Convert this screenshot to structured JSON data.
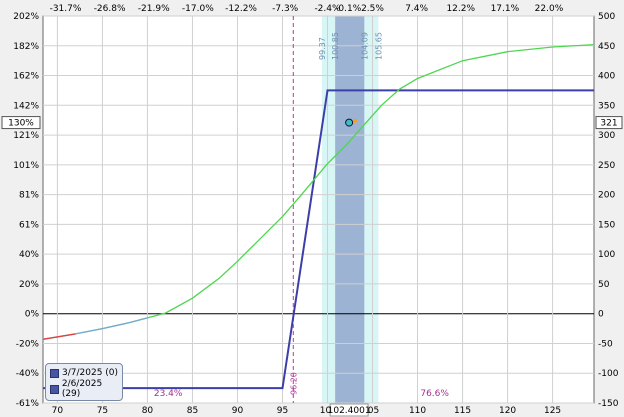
{
  "chart_data": {
    "type": "line",
    "x_ticks": [
      "70",
      "75",
      "80",
      "85",
      "90",
      "95",
      "100",
      "105",
      "110",
      "115",
      "120",
      "125"
    ],
    "x_top_ticks": [
      "-31.7%",
      "-26.8%",
      "-21.9%",
      "-17.0%",
      "-12.2%",
      "-7.3%",
      "-2.4%",
      "-0.1%",
      "2.5%",
      "7.4%",
      "12.2%",
      "17.1%",
      "22.0%"
    ],
    "y_left_ticks": [
      "202%",
      "182%",
      "162%",
      "142%",
      "121%",
      "101%",
      "81%",
      "61%",
      "40%",
      "20%",
      "0%",
      "-20%",
      "-40%",
      "-61%"
    ],
    "y_right_ticks": [
      "500",
      "450",
      "400",
      "350",
      "300",
      "250",
      "200",
      "150",
      "100",
      "50",
      "0",
      "-50",
      "-100",
      "-150"
    ],
    "xlim": [
      68.4,
      129.6
    ],
    "ylim": [
      -150,
      500
    ],
    "current_price_label": "102.4001",
    "cursor_left_label": "130%",
    "cursor_right_label": "321",
    "left_line_label": "96.20",
    "band_labels": [
      "99.37",
      "100.85",
      "104.09",
      "105.65"
    ],
    "prob_left": "23.4%",
    "prob_right": "76.6%",
    "series": [
      {
        "name": "3/7/2025 (0)",
        "color": "#3d3fa8",
        "x": [
          68.4,
          95.0,
          100.0,
          129.6
        ],
        "y": [
          -125,
          -125,
          375,
          375
        ]
      },
      {
        "name": "2/6/2025 (29)",
        "color": "#4ed64e",
        "x": [
          68.4,
          72,
          75,
          78,
          80,
          82,
          85,
          88,
          90,
          92,
          95,
          97,
          100,
          102,
          104,
          106,
          108,
          110,
          115,
          120,
          125,
          129.6
        ],
        "y": [
          -43,
          -34,
          -25,
          -15,
          -7,
          1,
          26,
          60,
          88,
          118,
          163,
          198,
          252,
          282,
          316,
          350,
          377,
          395,
          425,
          440,
          448,
          452
        ]
      }
    ]
  },
  "legend": {
    "item1": "3/7/2025 (0)",
    "item2": "2/6/2025 (29)"
  }
}
